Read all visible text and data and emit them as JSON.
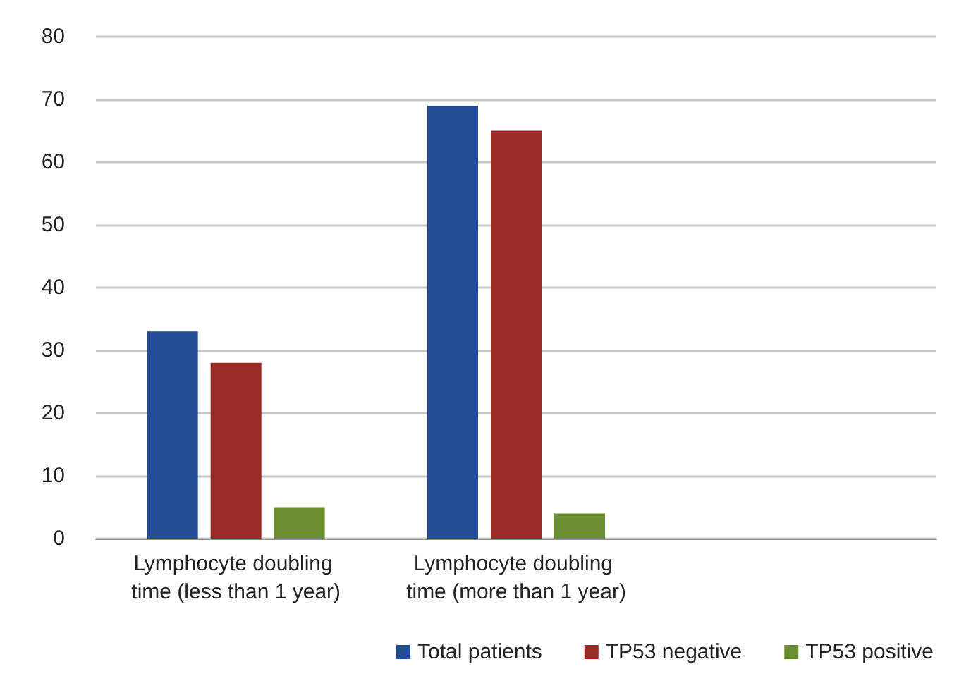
{
  "chart_data": {
    "type": "bar",
    "categories": [
      "Lymphocyte doubling time (less than 1 year)",
      "Lymphocyte doubling time (more than 1 year)",
      null
    ],
    "series": [
      {
        "name": "Total patients",
        "color": "#234b96",
        "values": [
          33,
          69,
          null
        ]
      },
      {
        "name": "TP53 negative",
        "color": "#9b2a27",
        "values": [
          28,
          65,
          null
        ]
      },
      {
        "name": "TP53 positive",
        "color": "#6b8f2e",
        "values": [
          5,
          4,
          null
        ]
      }
    ],
    "ylim": [
      0,
      80
    ],
    "yticks": [
      0,
      10,
      20,
      30,
      40,
      50,
      60,
      70,
      80
    ],
    "grid": "y",
    "legend": "bottom right"
  }
}
